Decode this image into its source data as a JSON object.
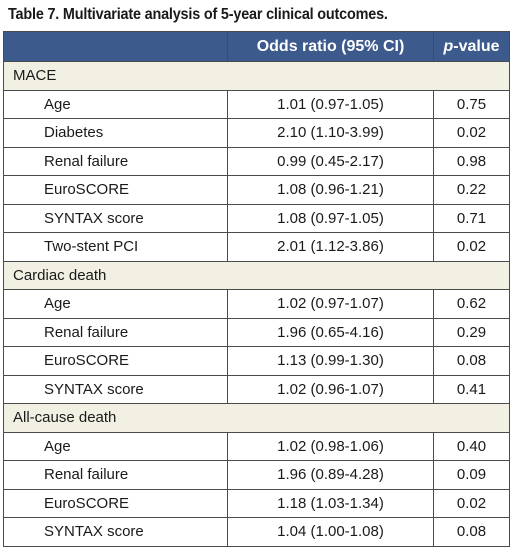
{
  "caption": "Table 7. Multivariate analysis of 5-year clinical outcomes.",
  "header": {
    "col1": "",
    "col2": "Odds ratio (95% CI)",
    "col3_italic": "p",
    "col3_rest": "-value"
  },
  "groups": [
    {
      "name": "MACE",
      "rows": [
        {
          "label": "Age",
          "or": "1.01 (0.97-1.05)",
          "p": "0.75"
        },
        {
          "label": "Diabetes",
          "or": "2.10 (1.10-3.99)",
          "p": "0.02"
        },
        {
          "label": "Renal failure",
          "or": "0.99 (0.45-2.17)",
          "p": "0.98"
        },
        {
          "label": "EuroSCORE",
          "or": "1.08 (0.96-1.21)",
          "p": "0.22"
        },
        {
          "label": "SYNTAX score",
          "or": "1.08 (0.97-1.05)",
          "p": "0.71"
        },
        {
          "label": "Two-stent PCI",
          "or": "2.01 (1.12-3.86)",
          "p": "0.02"
        }
      ]
    },
    {
      "name": "Cardiac death",
      "rows": [
        {
          "label": "Age",
          "or": "1.02 (0.97-1.07)",
          "p": "0.62"
        },
        {
          "label": "Renal failure",
          "or": "1.96 (0.65-4.16)",
          "p": "0.29"
        },
        {
          "label": "EuroSCORE",
          "or": "1.13 (0.99-1.30)",
          "p": "0.08"
        },
        {
          "label": "SYNTAX score",
          "or": "1.02 (0.96-1.07)",
          "p": "0.41"
        }
      ]
    },
    {
      "name": "All-cause death",
      "rows": [
        {
          "label": "Age",
          "or": "1.02 (0.98-1.06)",
          "p": "0.40"
        },
        {
          "label": "Renal failure",
          "or": "1.96 (0.89-4.28)",
          "p": "0.09"
        },
        {
          "label": "EuroSCORE",
          "or": "1.18 (1.03-1.34)",
          "p": "0.02"
        },
        {
          "label": "SYNTAX score",
          "or": "1.04 (1.00-1.08)",
          "p": "0.08"
        }
      ]
    }
  ]
}
